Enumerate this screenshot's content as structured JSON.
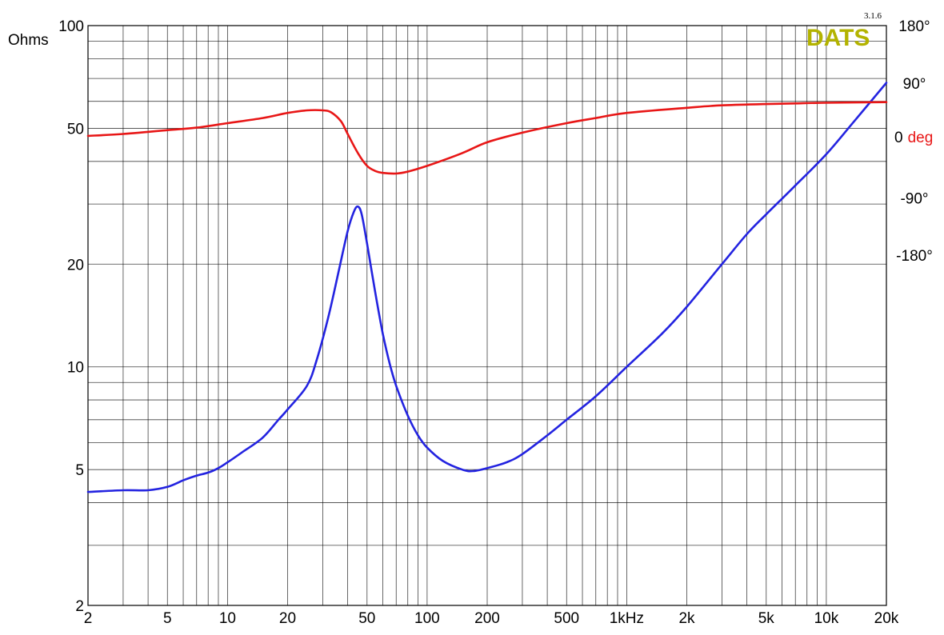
{
  "chart_data": {
    "type": "line",
    "title": "",
    "brand": "DATS",
    "version": "3.1.6",
    "xscale": "log",
    "xlim": [
      2,
      20000
    ],
    "x_ticks": [
      {
        "v": 2,
        "label": "2"
      },
      {
        "v": 5,
        "label": "5"
      },
      {
        "v": 10,
        "label": "10"
      },
      {
        "v": 20,
        "label": "20"
      },
      {
        "v": 50,
        "label": "50"
      },
      {
        "v": 100,
        "label": "100"
      },
      {
        "v": 200,
        "label": "200"
      },
      {
        "v": 500,
        "label": "500"
      },
      {
        "v": 1000,
        "label": "1kHz"
      },
      {
        "v": 2000,
        "label": "2k"
      },
      {
        "v": 5000,
        "label": "5k"
      },
      {
        "v": 10000,
        "label": "10k"
      },
      {
        "v": 20000,
        "label": "20k"
      }
    ],
    "y_left": {
      "label": "Ohms",
      "scale": "log",
      "lim": [
        2,
        100
      ],
      "ticks": [
        {
          "v": 2,
          "label": "2"
        },
        {
          "v": 5,
          "label": "5"
        },
        {
          "v": 10,
          "label": "10"
        },
        {
          "v": 20,
          "label": "20"
        },
        {
          "v": 50,
          "label": "50"
        },
        {
          "v": 100,
          "label": "100"
        }
      ]
    },
    "y_right": {
      "label_prefix": "0",
      "label_unit": "deg",
      "lim": [
        -180,
        180
      ],
      "ticks": [
        {
          "v": 180,
          "label": "180°"
        },
        {
          "v": 90,
          "label": "90°"
        },
        {
          "v": -90,
          "label": "-90°"
        },
        {
          "v": -180,
          "label": "-180°"
        }
      ]
    },
    "grid": true,
    "series": [
      {
        "id": "impedance",
        "color": "#2323e0",
        "axis": "left",
        "points": [
          [
            2,
            4.3
          ],
          [
            3,
            4.35
          ],
          [
            4,
            4.35
          ],
          [
            5,
            4.45
          ],
          [
            6,
            4.65
          ],
          [
            7,
            4.8
          ],
          [
            8,
            4.9
          ],
          [
            9,
            5.05
          ],
          [
            10,
            5.25
          ],
          [
            12,
            5.65
          ],
          [
            15,
            6.2
          ],
          [
            18,
            7.0
          ],
          [
            20,
            7.5
          ],
          [
            25,
            8.8
          ],
          [
            28,
            10.5
          ],
          [
            32,
            14.0
          ],
          [
            36,
            19.0
          ],
          [
            40,
            25.0
          ],
          [
            43,
            28.5
          ],
          [
            45,
            29.5
          ],
          [
            47,
            28.0
          ],
          [
            50,
            23.0
          ],
          [
            55,
            16.5
          ],
          [
            60,
            12.5
          ],
          [
            65,
            10.2
          ],
          [
            70,
            8.8
          ],
          [
            80,
            7.2
          ],
          [
            90,
            6.3
          ],
          [
            100,
            5.8
          ],
          [
            120,
            5.3
          ],
          [
            150,
            5.0
          ],
          [
            170,
            4.95
          ],
          [
            200,
            5.05
          ],
          [
            250,
            5.25
          ],
          [
            300,
            5.55
          ],
          [
            400,
            6.3
          ],
          [
            500,
            7.0
          ],
          [
            700,
            8.2
          ],
          [
            1000,
            10.0
          ],
          [
            1500,
            12.5
          ],
          [
            2000,
            15.0
          ],
          [
            3000,
            20.0
          ],
          [
            4000,
            24.5
          ],
          [
            5000,
            28.0
          ],
          [
            7000,
            34.0
          ],
          [
            10000,
            42.0
          ],
          [
            14000,
            53.0
          ],
          [
            20000,
            68.0
          ]
        ]
      },
      {
        "id": "phase",
        "color": "#e81616",
        "axis": "right",
        "points": [
          [
            2,
            7
          ],
          [
            3,
            10
          ],
          [
            5,
            16
          ],
          [
            7,
            20
          ],
          [
            10,
            27
          ],
          [
            15,
            35
          ],
          [
            20,
            43
          ],
          [
            25,
            47
          ],
          [
            30,
            47
          ],
          [
            33,
            44
          ],
          [
            37,
            30
          ],
          [
            40,
            10
          ],
          [
            45,
            -20
          ],
          [
            50,
            -40
          ],
          [
            55,
            -48
          ],
          [
            60,
            -51
          ],
          [
            70,
            -52
          ],
          [
            80,
            -49
          ],
          [
            100,
            -40
          ],
          [
            150,
            -20
          ],
          [
            200,
            -3
          ],
          [
            300,
            12
          ],
          [
            500,
            27
          ],
          [
            700,
            35
          ],
          [
            1000,
            43
          ],
          [
            2000,
            51
          ],
          [
            3000,
            55
          ],
          [
            5000,
            57
          ],
          [
            7000,
            58
          ],
          [
            10000,
            59
          ],
          [
            20000,
            60
          ]
        ]
      }
    ]
  }
}
